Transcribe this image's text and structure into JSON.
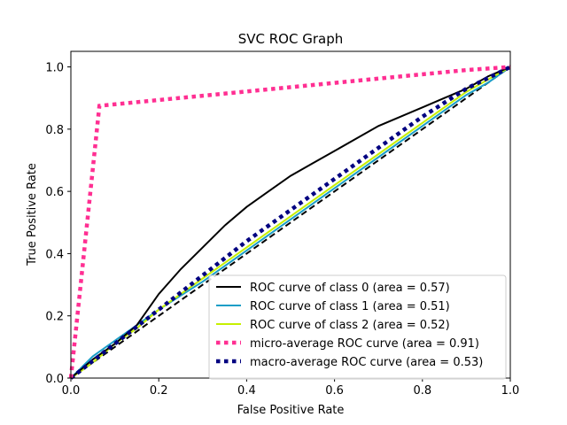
{
  "chart_data": {
    "type": "line",
    "title": "SVC ROC Graph",
    "xlabel": "False Positive Rate",
    "ylabel": "True Positive Rate",
    "xlim": [
      0.0,
      1.0
    ],
    "ylim": [
      0.0,
      1.05
    ],
    "xticks": [
      "0.0",
      "0.2",
      "0.4",
      "0.6",
      "0.8",
      "1.0"
    ],
    "yticks": [
      "0.0",
      "0.2",
      "0.4",
      "0.6",
      "0.8",
      "1.0"
    ],
    "grid": false,
    "legend_position": "lower-right",
    "series": [
      {
        "name": "ROC curve of class 0 (area = 0.57)",
        "color": "#000000",
        "style": "solid",
        "x": [
          0.0,
          0.05,
          0.1,
          0.15,
          0.2,
          0.25,
          0.3,
          0.35,
          0.4,
          0.45,
          0.5,
          0.55,
          0.6,
          0.65,
          0.7,
          0.75,
          0.8,
          0.85,
          0.9,
          0.95,
          1.0
        ],
        "y": [
          0.0,
          0.06,
          0.11,
          0.17,
          0.27,
          0.35,
          0.42,
          0.49,
          0.55,
          0.6,
          0.65,
          0.69,
          0.73,
          0.77,
          0.81,
          0.84,
          0.87,
          0.9,
          0.93,
          0.97,
          1.0
        ]
      },
      {
        "name": "ROC curve of class 1 (area = 0.51)",
        "color": "#1a9ec7",
        "style": "solid",
        "x": [
          0.0,
          0.05,
          0.1,
          0.15,
          0.2,
          0.3,
          0.4,
          0.5,
          0.6,
          0.7,
          0.8,
          0.9,
          0.95,
          1.0
        ],
        "y": [
          0.0,
          0.07,
          0.12,
          0.17,
          0.22,
          0.31,
          0.41,
          0.51,
          0.61,
          0.71,
          0.81,
          0.91,
          0.95,
          1.0
        ]
      },
      {
        "name": "ROC curve of class 2 (area = 0.52)",
        "color": "#c6f000",
        "style": "solid",
        "x": [
          0.0,
          0.05,
          0.1,
          0.15,
          0.2,
          0.3,
          0.4,
          0.5,
          0.6,
          0.7,
          0.8,
          0.9,
          0.95,
          1.0
        ],
        "y": [
          0.0,
          0.05,
          0.11,
          0.16,
          0.22,
          0.32,
          0.42,
          0.52,
          0.62,
          0.72,
          0.82,
          0.92,
          0.96,
          1.0
        ]
      },
      {
        "name": "micro-average ROC curve (area = 0.91)",
        "color": "#ff2f92",
        "style": "dotted",
        "x": [
          0.0,
          0.065,
          0.9,
          1.0
        ],
        "y": [
          0.0,
          0.875,
          0.99,
          1.0
        ]
      },
      {
        "name": "macro-average ROC curve (area = 0.53)",
        "color": "#000080",
        "style": "dotted",
        "x": [
          0.0,
          0.1,
          0.2,
          0.3,
          0.4,
          0.5,
          0.6,
          0.7,
          0.8,
          0.9,
          1.0
        ],
        "y": [
          0.0,
          0.11,
          0.22,
          0.33,
          0.44,
          0.54,
          0.64,
          0.74,
          0.84,
          0.93,
          1.0
        ]
      },
      {
        "name": "",
        "color": "#000000",
        "style": "dashed",
        "x": [
          0.0,
          1.0
        ],
        "y": [
          0.0,
          1.0
        ]
      }
    ]
  }
}
